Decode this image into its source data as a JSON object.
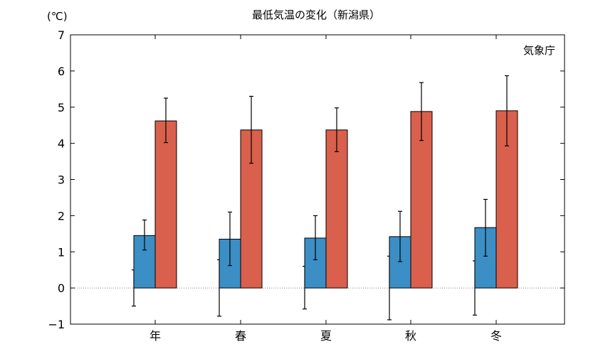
{
  "chart_data": {
    "type": "bar",
    "title": "最低気温の変化（新潟県）",
    "unit_label": "(℃)",
    "source_label": "気象庁",
    "categories": [
      "年",
      "春",
      "夏",
      "秋",
      "冬"
    ],
    "ylim": [
      -1,
      7
    ],
    "yticks": [
      -1,
      0,
      1,
      2,
      3,
      4,
      5,
      6,
      7
    ],
    "grid": false,
    "zero_line": "dotted",
    "error_bars": true,
    "series": [
      {
        "values": [
          0.0,
          0.0,
          0.0,
          0.0,
          0.0
        ],
        "error_low": [
          -0.5,
          -0.78,
          -0.58,
          -0.88,
          -0.75
        ],
        "error_high": [
          0.5,
          0.78,
          0.6,
          0.88,
          0.75
        ],
        "color": ""
      },
      {
        "values": [
          1.45,
          1.35,
          1.38,
          1.42,
          1.67
        ],
        "error_low": [
          1.05,
          0.62,
          0.78,
          0.73,
          0.88
        ],
        "error_high": [
          1.88,
          2.1,
          2.0,
          2.12,
          2.45
        ],
        "color": "#3b8fc4"
      },
      {
        "values": [
          4.62,
          4.37,
          4.37,
          4.88,
          4.9
        ],
        "error_low": [
          4.02,
          3.45,
          3.77,
          4.08,
          3.93
        ],
        "error_high": [
          5.25,
          5.3,
          4.98,
          5.68,
          5.87
        ],
        "color": "#d9604c"
      }
    ]
  }
}
